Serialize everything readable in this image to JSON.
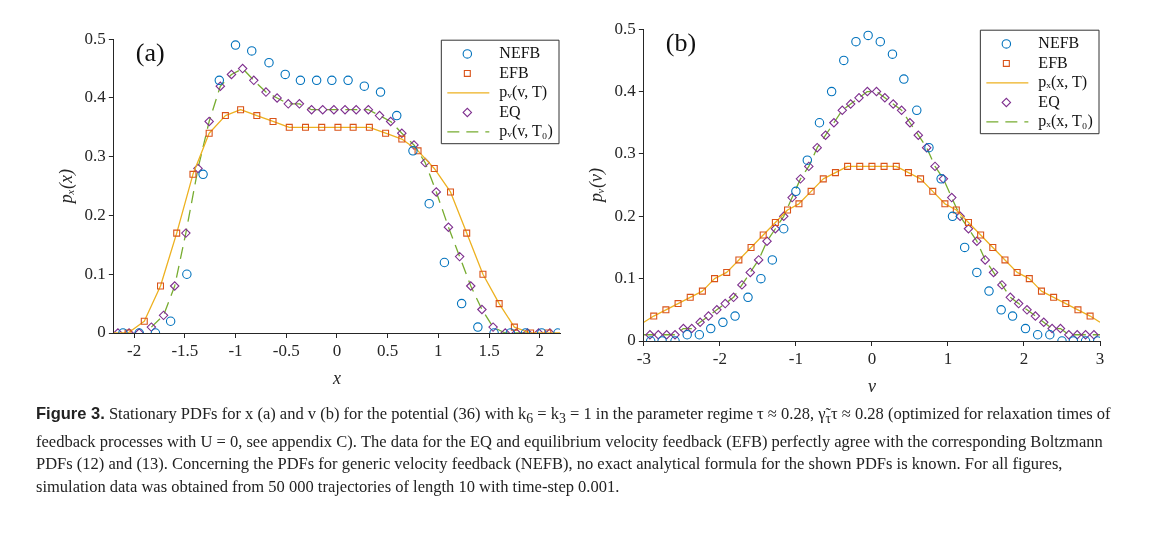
{
  "chart_data": [
    {
      "type": "scatter",
      "xlabel": "x",
      "ylabel": "pₓ(x)",
      "xlim": [
        -2.2,
        2.2
      ],
      "xticks": [
        -2,
        -1.5,
        -1,
        -0.5,
        0,
        0.5,
        1,
        1.5,
        2
      ],
      "ylim": [
        0,
        0.5
      ],
      "yticks": [
        0,
        0.1,
        0.2,
        0.3,
        0.4,
        0.5
      ],
      "legend": "top right",
      "annotations": [
        "(a)"
      ],
      "series": [
        {
          "name": "NEFB",
          "type": "scatter",
          "marker": "circle",
          "color": "#0072bd",
          "x": [
            -2.11,
            -1.95,
            -1.79,
            -1.64,
            -1.48,
            -1.32,
            -1.16,
            -1.0,
            -0.84,
            -0.67,
            -0.51,
            -0.36,
            -0.2,
            -0.05,
            0.11,
            0.27,
            0.43,
            0.59,
            0.75,
            0.91,
            1.06,
            1.23,
            1.39,
            1.55,
            1.71,
            1.86,
            2.02,
            2.18
          ],
          "values": [
            0,
            0,
            0,
            0.02,
            0.1,
            0.27,
            0.43,
            0.49,
            0.48,
            0.46,
            0.44,
            0.43,
            0.43,
            0.43,
            0.43,
            0.42,
            0.41,
            0.37,
            0.31,
            0.22,
            0.12,
            0.05,
            0.01,
            0,
            0,
            0,
            0,
            0
          ]
        },
        {
          "name": "EFB",
          "type": "scatter",
          "marker": "square",
          "color": "#d95319",
          "x": [
            -2.06,
            -1.9,
            -1.74,
            -1.58,
            -1.42,
            -1.26,
            -1.1,
            -0.95,
            -0.79,
            -0.63,
            -0.47,
            -0.31,
            -0.15,
            0.01,
            0.16,
            0.32,
            0.48,
            0.64,
            0.8,
            0.96,
            1.12,
            1.28,
            1.44,
            1.6,
            1.75,
            1.91,
            2.08
          ],
          "values": [
            0,
            0.02,
            0.08,
            0.17,
            0.27,
            0.34,
            0.37,
            0.38,
            0.37,
            0.36,
            0.35,
            0.35,
            0.35,
            0.35,
            0.35,
            0.35,
            0.34,
            0.33,
            0.31,
            0.28,
            0.24,
            0.17,
            0.1,
            0.05,
            0.01,
            0,
            0
          ]
        },
        {
          "name": "pᵥ(v, T)",
          "type": "line",
          "marker": "none",
          "line_style": "solid",
          "color": "#edb120",
          "x": [
            -2.2,
            -2.06,
            -1.9,
            -1.74,
            -1.58,
            -1.42,
            -1.26,
            -1.1,
            -0.95,
            -0.79,
            -0.63,
            -0.47,
            -0.31,
            -0.15,
            0.01,
            0.16,
            0.32,
            0.48,
            0.64,
            0.8,
            0.96,
            1.12,
            1.28,
            1.44,
            1.6,
            1.75,
            1.91,
            2.08,
            2.2
          ],
          "values": [
            0,
            0,
            0.02,
            0.08,
            0.17,
            0.27,
            0.34,
            0.37,
            0.38,
            0.37,
            0.36,
            0.35,
            0.35,
            0.35,
            0.35,
            0.35,
            0.35,
            0.34,
            0.33,
            0.31,
            0.28,
            0.24,
            0.17,
            0.1,
            0.05,
            0.01,
            0,
            0,
            0
          ]
        },
        {
          "name": "EQ",
          "type": "scatter",
          "marker": "diamond",
          "color": "#7e2f8e",
          "x": [
            -2.16,
            -2.05,
            -1.95,
            -1.83,
            -1.71,
            -1.6,
            -1.49,
            -1.37,
            -1.26,
            -1.15,
            -1.04,
            -0.93,
            -0.82,
            -0.7,
            -0.59,
            -0.48,
            -0.37,
            -0.25,
            -0.14,
            -0.03,
            0.08,
            0.19,
            0.31,
            0.42,
            0.53,
            0.64,
            0.76,
            0.87,
            0.98,
            1.1,
            1.21,
            1.32,
            1.43,
            1.54,
            1.66,
            1.77,
            1.88,
            1.99,
            2.1
          ],
          "values": [
            0,
            0,
            0,
            0.01,
            0.03,
            0.08,
            0.17,
            0.28,
            0.36,
            0.42,
            0.44,
            0.45,
            0.43,
            0.41,
            0.4,
            0.39,
            0.39,
            0.38,
            0.38,
            0.38,
            0.38,
            0.38,
            0.38,
            0.37,
            0.36,
            0.34,
            0.32,
            0.29,
            0.24,
            0.18,
            0.13,
            0.08,
            0.04,
            0.01,
            0,
            0,
            0,
            0,
            0
          ]
        },
        {
          "name": "pᵥ(v, T₀)",
          "type": "line",
          "marker": "none",
          "line_style": "dashed",
          "color": "#77ac30",
          "x": [
            -1.83,
            -1.71,
            -1.6,
            -1.49,
            -1.37,
            -1.26,
            -1.15,
            -1.04,
            -0.93,
            -0.82,
            -0.7,
            -0.59,
            -0.48,
            -0.37,
            -0.25,
            -0.14,
            -0.03,
            0.08,
            0.19,
            0.31,
            0.42,
            0.53,
            0.64,
            0.76,
            0.87,
            0.98,
            1.1,
            1.21,
            1.32,
            1.43,
            1.54,
            1.66,
            1.77,
            1.88
          ],
          "values": [
            0.01,
            0.03,
            0.08,
            0.17,
            0.28,
            0.36,
            0.42,
            0.44,
            0.45,
            0.43,
            0.41,
            0.4,
            0.39,
            0.39,
            0.38,
            0.38,
            0.38,
            0.38,
            0.38,
            0.38,
            0.37,
            0.36,
            0.34,
            0.32,
            0.29,
            0.24,
            0.18,
            0.13,
            0.08,
            0.04,
            0.01,
            0,
            0,
            0
          ]
        }
      ]
    },
    {
      "type": "scatter",
      "xlabel": "v",
      "ylabel": "pᵥ(v)",
      "xlim": [
        -3,
        3
      ],
      "xticks": [
        -3,
        -2,
        -1,
        0,
        1,
        2,
        3
      ],
      "ylim": [
        0,
        0.5
      ],
      "yticks": [
        0,
        0.1,
        0.2,
        0.3,
        0.4,
        0.5
      ],
      "legend": "top right",
      "annotations": [
        "(b)",
        "Figure 3. Stationary PDFs for x (a) and v (b) for the potential (36) with k$_{6}$ = k$_{3}$ = 1 in the parameter regime τ ≈ 0.28, γ̃$_{τ}$τ ≈ 0.28 (optimized for relaxation times of feedback processes with U = 0, see appendix C). The data for the EQ and equilibrium velocity feedback (EFB) perfectly agree with the corresponding Boltzmann PDFs (12) and (13). Concerning the PDFs for generic velocity feedback (NEFB), no exact analytical formula for the shown PDFs is known. For all figures, simulation data was obtained from 50 000 trajectories of length 10 with time-step 0.001."
      ],
      "series": [
        {
          "name": "NEFB",
          "type": "scatter",
          "marker": "circle",
          "color": "#0072bd",
          "x": [
            -2.91,
            -2.76,
            -2.59,
            -2.43,
            -2.27,
            -2.12,
            -1.96,
            -1.8,
            -1.63,
            -1.46,
            -1.31,
            -1.16,
            -1.0,
            -0.85,
            -0.69,
            -0.53,
            -0.37,
            -0.21,
            -0.05,
            0.11,
            0.27,
            0.42,
            0.59,
            0.75,
            0.91,
            1.06,
            1.22,
            1.38,
            1.54,
            1.7,
            1.85,
            2.02,
            2.18,
            2.34,
            2.5,
            2.65,
            2.81,
            2.97
          ],
          "values": [
            0,
            0,
            0,
            0.01,
            0.01,
            0.02,
            0.03,
            0.04,
            0.07,
            0.1,
            0.13,
            0.18,
            0.24,
            0.29,
            0.35,
            0.4,
            0.45,
            0.48,
            0.49,
            0.48,
            0.46,
            0.42,
            0.37,
            0.31,
            0.26,
            0.2,
            0.15,
            0.11,
            0.08,
            0.05,
            0.04,
            0.02,
            0.01,
            0.01,
            0,
            0,
            0,
            0
          ]
        },
        {
          "name": "EFB",
          "type": "scatter",
          "marker": "square",
          "color": "#d95319",
          "x": [
            -2.87,
            -2.71,
            -2.55,
            -2.39,
            -2.23,
            -2.07,
            -1.91,
            -1.75,
            -1.59,
            -1.43,
            -1.27,
            -1.11,
            -0.96,
            -0.8,
            -0.64,
            -0.48,
            -0.32,
            -0.16,
            0,
            0.16,
            0.32,
            0.48,
            0.64,
            0.8,
            0.96,
            1.11,
            1.27,
            1.43,
            1.59,
            1.75,
            1.91,
            2.07,
            2.23,
            2.39,
            2.55,
            2.71,
            2.87
          ],
          "values": [
            0.04,
            0.05,
            0.06,
            0.07,
            0.08,
            0.1,
            0.11,
            0.13,
            0.15,
            0.17,
            0.19,
            0.21,
            0.22,
            0.24,
            0.26,
            0.27,
            0.28,
            0.28,
            0.28,
            0.28,
            0.28,
            0.27,
            0.26,
            0.24,
            0.22,
            0.21,
            0.19,
            0.17,
            0.15,
            0.13,
            0.11,
            0.1,
            0.08,
            0.07,
            0.06,
            0.05,
            0.04
          ]
        },
        {
          "name": "pₓ(x, T)",
          "type": "line",
          "marker": "none",
          "line_style": "solid",
          "color": "#edb120",
          "x": [
            -3,
            -2.87,
            -2.71,
            -2.55,
            -2.39,
            -2.23,
            -2.07,
            -1.91,
            -1.75,
            -1.59,
            -1.43,
            -1.27,
            -1.11,
            -0.96,
            -0.8,
            -0.64,
            -0.48,
            -0.32,
            -0.16,
            0,
            0.16,
            0.32,
            0.48,
            0.64,
            0.8,
            0.96,
            1.11,
            1.27,
            1.43,
            1.59,
            1.75,
            1.91,
            2.07,
            2.23,
            2.39,
            2.55,
            2.71,
            2.87,
            3
          ],
          "values": [
            0.03,
            0.04,
            0.05,
            0.06,
            0.07,
            0.08,
            0.1,
            0.11,
            0.13,
            0.15,
            0.17,
            0.19,
            0.21,
            0.22,
            0.24,
            0.26,
            0.27,
            0.28,
            0.28,
            0.28,
            0.28,
            0.28,
            0.27,
            0.26,
            0.24,
            0.22,
            0.21,
            0.19,
            0.17,
            0.15,
            0.13,
            0.11,
            0.1,
            0.08,
            0.07,
            0.06,
            0.05,
            0.04,
            0.03
          ]
        },
        {
          "name": "EQ",
          "type": "scatter",
          "marker": "diamond",
          "color": "#7e2f8e",
          "x": [
            -2.92,
            -2.81,
            -2.7,
            -2.59,
            -2.48,
            -2.37,
            -2.26,
            -2.15,
            -2.04,
            -1.93,
            -1.82,
            -1.71,
            -1.6,
            -1.49,
            -1.38,
            -1.27,
            -1.16,
            -1.05,
            -0.94,
            -0.83,
            -0.72,
            -0.61,
            -0.5,
            -0.39,
            -0.28,
            -0.17,
            -0.06,
            0.06,
            0.17,
            0.28,
            0.39,
            0.5,
            0.61,
            0.72,
            0.83,
            0.94,
            1.05,
            1.16,
            1.27,
            1.38,
            1.49,
            1.6,
            1.71,
            1.82,
            1.93,
            2.04,
            2.15,
            2.26,
            2.37,
            2.48,
            2.59,
            2.7,
            2.81,
            2.92
          ],
          "values": [
            0.01,
            0.01,
            0.01,
            0.01,
            0.02,
            0.02,
            0.03,
            0.04,
            0.05,
            0.06,
            0.07,
            0.09,
            0.11,
            0.13,
            0.16,
            0.18,
            0.2,
            0.23,
            0.26,
            0.28,
            0.31,
            0.33,
            0.35,
            0.37,
            0.38,
            0.39,
            0.4,
            0.4,
            0.39,
            0.38,
            0.37,
            0.35,
            0.33,
            0.31,
            0.28,
            0.26,
            0.23,
            0.2,
            0.18,
            0.16,
            0.13,
            0.11,
            0.09,
            0.07,
            0.06,
            0.05,
            0.04,
            0.03,
            0.02,
            0.02,
            0.01,
            0.01,
            0.01,
            0.01
          ]
        },
        {
          "name": "pₓ(x, T₀)",
          "type": "line",
          "marker": "none",
          "line_style": "dashed",
          "color": "#77ac30",
          "x": [
            -3,
            -2.92,
            -2.81,
            -2.7,
            -2.59,
            -2.48,
            -2.37,
            -2.26,
            -2.15,
            -2.04,
            -1.93,
            -1.82,
            -1.71,
            -1.6,
            -1.49,
            -1.38,
            -1.27,
            -1.16,
            -1.05,
            -0.94,
            -0.83,
            -0.72,
            -0.61,
            -0.5,
            -0.39,
            -0.28,
            -0.17,
            -0.06,
            0.06,
            0.17,
            0.28,
            0.39,
            0.5,
            0.61,
            0.72,
            0.83,
            0.94,
            1.05,
            1.16,
            1.27,
            1.38,
            1.49,
            1.6,
            1.71,
            1.82,
            1.93,
            2.04,
            2.15,
            2.26,
            2.37,
            2.48,
            2.59,
            2.7,
            2.81,
            2.92,
            3
          ],
          "values": [
            0.01,
            0.01,
            0.01,
            0.01,
            0.01,
            0.02,
            0.02,
            0.03,
            0.04,
            0.05,
            0.06,
            0.07,
            0.09,
            0.11,
            0.13,
            0.16,
            0.18,
            0.2,
            0.23,
            0.26,
            0.28,
            0.31,
            0.33,
            0.35,
            0.37,
            0.38,
            0.39,
            0.4,
            0.4,
            0.39,
            0.38,
            0.37,
            0.35,
            0.33,
            0.31,
            0.28,
            0.26,
            0.23,
            0.2,
            0.18,
            0.16,
            0.13,
            0.11,
            0.09,
            0.07,
            0.06,
            0.05,
            0.04,
            0.03,
            0.02,
            0.02,
            0.01,
            0.01,
            0.01,
            0.01,
            0.01
          ]
        }
      ]
    }
  ]
}
